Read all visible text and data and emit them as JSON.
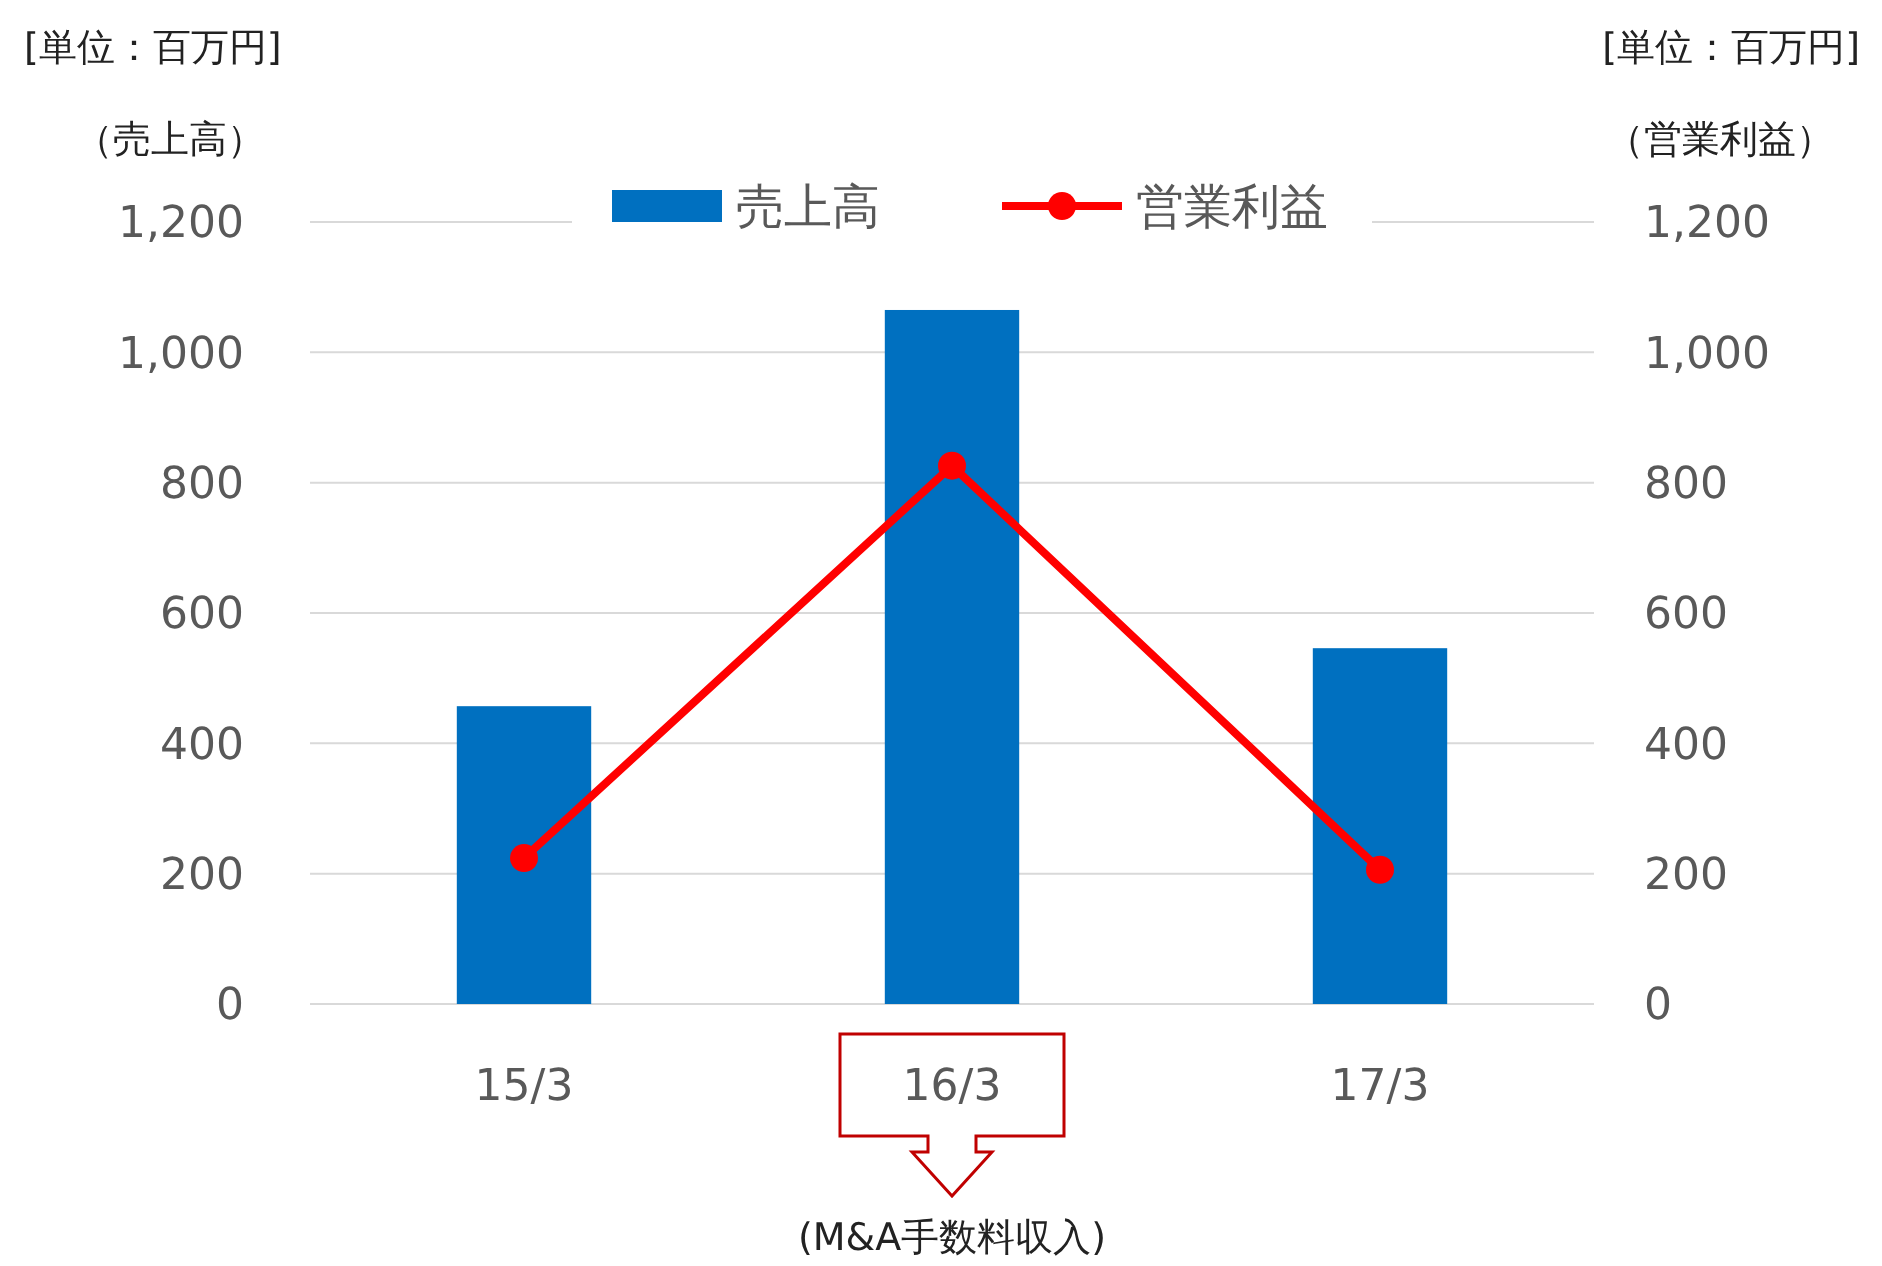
{
  "chart_data": {
    "type": "bar",
    "categories": [
      "15/3",
      "16/3",
      "17/3"
    ],
    "ylabel": "（売上高）",
    "y2label": "（営業利益）",
    "series": [
      {
        "name": "売上高",
        "color": "#0070c0",
        "values": [
          457,
          1065,
          546
        ]
      },
      {
        "name": "営業利益",
        "type": "line",
        "axis": "y2",
        "color": "#ff0000",
        "marker": "circle",
        "values": [
          224,
          826,
          206
        ]
      }
    ],
    "ylim": [
      0,
      1200
    ],
    "yticks": [
      0,
      200,
      400,
      600,
      800,
      {
        "value": 1000,
        "label": "1,000"
      },
      {
        "value": 1200,
        "label": "1,200"
      }
    ],
    "y2lim": [
      0,
      1200
    ],
    "y2ticks": [
      0,
      200,
      400,
      600,
      800,
      {
        "value": 1000,
        "label": "1,000"
      },
      {
        "value": 1200,
        "label": "1,200"
      }
    ],
    "grid": "y",
    "legend": "top",
    "annotations": [
      "[単位：百万円]",
      "[単位：百万円]",
      "(M&A手数料収入)"
    ]
  }
}
